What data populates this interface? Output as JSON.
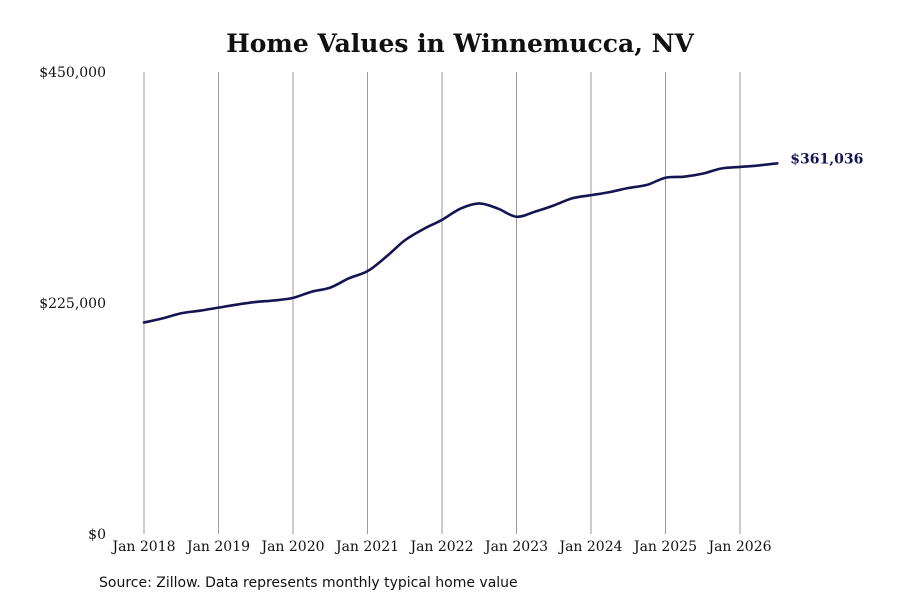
{
  "chart_data": {
    "type": "line",
    "title": "Home Values in Winnemucca, NV",
    "source": "Source: Zillow. Data represents monthly typical home value",
    "xlabel": "",
    "ylabel": "",
    "ylim": [
      0,
      450000
    ],
    "yticks": [
      {
        "value": 0,
        "label": "$0"
      },
      {
        "value": 225000,
        "label": "$225,000"
      },
      {
        "value": 450000,
        "label": "$450,000"
      }
    ],
    "xticks": [
      {
        "value": "2018-01",
        "label": "Jan 2018"
      },
      {
        "value": "2019-01",
        "label": "Jan 2019"
      },
      {
        "value": "2020-01",
        "label": "Jan 2020"
      },
      {
        "value": "2021-01",
        "label": "Jan 2021"
      },
      {
        "value": "2022-01",
        "label": "Jan 2022"
      },
      {
        "value": "2023-01",
        "label": "Jan 2023"
      },
      {
        "value": "2024-01",
        "label": "Jan 2024"
      },
      {
        "value": "2025-01",
        "label": "Jan 2025"
      },
      {
        "value": "2026-01",
        "label": "Jan 2026"
      }
    ],
    "grid": "vertical",
    "line_color": "#141452",
    "end_label": "$361,036",
    "series": [
      {
        "points": [
          {
            "x": "2018-01",
            "y": 206000
          },
          {
            "x": "2018-04",
            "y": 210000
          },
          {
            "x": "2018-07",
            "y": 215000
          },
          {
            "x": "2018-10",
            "y": 217500
          },
          {
            "x": "2019-01",
            "y": 220500
          },
          {
            "x": "2019-04",
            "y": 223500
          },
          {
            "x": "2019-07",
            "y": 226000
          },
          {
            "x": "2019-10",
            "y": 227500
          },
          {
            "x": "2020-01",
            "y": 230000
          },
          {
            "x": "2020-04",
            "y": 236000
          },
          {
            "x": "2020-07",
            "y": 240000
          },
          {
            "x": "2020-10",
            "y": 249000
          },
          {
            "x": "2021-01",
            "y": 256000
          },
          {
            "x": "2021-04",
            "y": 270000
          },
          {
            "x": "2021-07",
            "y": 286000
          },
          {
            "x": "2021-10",
            "y": 297000
          },
          {
            "x": "2022-01",
            "y": 306000
          },
          {
            "x": "2022-04",
            "y": 317000
          },
          {
            "x": "2022-07",
            "y": 322000
          },
          {
            "x": "2022-10",
            "y": 317000
          },
          {
            "x": "2023-01",
            "y": 309000
          },
          {
            "x": "2023-04",
            "y": 314000
          },
          {
            "x": "2023-07",
            "y": 320000
          },
          {
            "x": "2023-10",
            "y": 327000
          },
          {
            "x": "2024-01",
            "y": 330000
          },
          {
            "x": "2024-04",
            "y": 333000
          },
          {
            "x": "2024-07",
            "y": 337000
          },
          {
            "x": "2024-10",
            "y": 340000
          },
          {
            "x": "2025-01",
            "y": 347000
          },
          {
            "x": "2025-04",
            "y": 348000
          },
          {
            "x": "2025-07",
            "y": 351000
          },
          {
            "x": "2025-10",
            "y": 356000
          },
          {
            "x": "2026-01",
            "y": 357500
          },
          {
            "x": "2026-04",
            "y": 359000
          },
          {
            "x": "2026-07",
            "y": 361036
          }
        ]
      }
    ]
  }
}
